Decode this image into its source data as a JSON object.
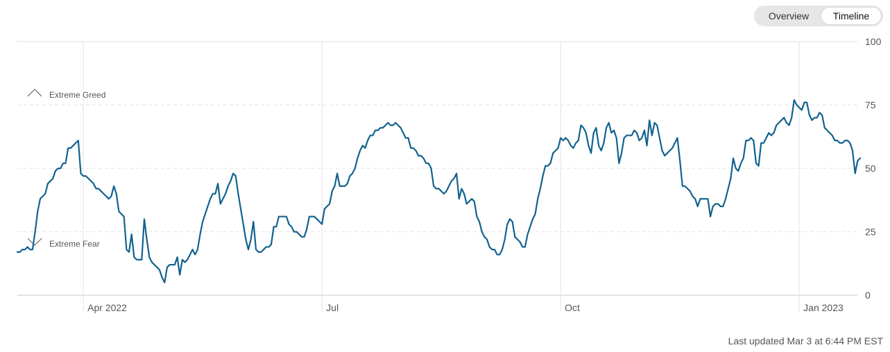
{
  "toggle": {
    "overview_label": "Overview",
    "timeline_label": "Timeline",
    "active": "Timeline"
  },
  "footer": {
    "last_updated": "Last updated Mar 3 at 6:44 PM EST"
  },
  "colors": {
    "line": "#11628f",
    "grid": "#e3e3e3",
    "axis": "#c8c8c8",
    "text": "#555555"
  },
  "chart_data": {
    "type": "line",
    "title": "",
    "xlabel": "",
    "ylabel": "",
    "ylim": [
      0,
      100
    ],
    "yticks": [
      0,
      25,
      50,
      75,
      100
    ],
    "xticks": [
      {
        "label": "Apr 2022",
        "index": 26
      },
      {
        "label": "Jul",
        "index": 120
      },
      {
        "label": "Oct",
        "index": 214
      },
      {
        "label": "Jan 2023",
        "index": 308
      }
    ],
    "annotations": [
      {
        "label": "Extreme Greed",
        "icon": "chevron-up-icon",
        "value": 75
      },
      {
        "label": "Extreme Fear",
        "icon": "chevron-down-icon",
        "value": 25
      }
    ],
    "grid": "dashed horizontal at 25/50/75, solid vertical at month ticks",
    "series": [
      {
        "values": [
          17,
          17,
          18,
          18,
          19,
          18,
          18,
          25,
          33,
          38,
          39,
          40,
          44,
          45,
          46,
          49,
          50,
          50,
          52,
          52,
          58,
          58,
          59,
          60,
          61,
          48,
          47,
          47,
          46,
          45,
          44,
          42,
          42,
          41,
          40,
          39,
          38,
          39,
          43,
          40,
          33,
          32,
          31,
          18,
          17,
          24,
          15,
          14,
          14,
          14,
          30,
          22,
          15,
          13,
          12,
          11,
          10,
          7,
          5,
          11,
          12,
          12,
          12,
          15,
          8,
          14,
          13,
          14,
          16,
          18,
          16,
          18,
          24,
          29,
          32,
          35,
          38,
          40,
          40,
          44,
          36,
          38,
          40,
          43,
          45,
          48,
          47,
          40,
          34,
          28,
          22,
          18,
          22,
          29,
          18,
          17,
          17,
          18,
          19,
          19,
          20,
          27,
          27,
          31,
          31,
          31,
          31,
          28,
          27,
          25,
          25,
          24,
          23,
          23,
          26,
          31,
          31,
          31,
          30,
          29,
          28,
          34,
          35,
          36,
          41,
          43,
          48,
          43,
          43,
          43,
          44,
          47,
          48,
          50,
          54,
          57,
          59,
          58,
          61,
          63,
          63,
          65,
          65,
          66,
          66,
          67,
          68,
          67,
          67,
          68,
          67,
          66,
          64,
          62,
          62,
          58,
          58,
          57,
          55,
          55,
          54,
          52,
          52,
          50,
          43,
          42,
          42,
          41,
          40,
          41,
          43,
          45,
          46,
          48,
          38,
          42,
          40,
          36,
          37,
          38,
          37,
          31,
          29,
          25,
          23,
          22,
          19,
          18,
          18,
          16,
          16,
          18,
          22,
          28,
          30,
          29,
          23,
          22,
          21,
          19,
          19,
          24,
          27,
          30,
          32,
          38,
          42,
          47,
          51,
          51,
          52,
          56,
          57,
          58,
          62,
          61,
          62,
          61,
          59,
          58,
          60,
          61,
          67,
          66,
          64,
          59,
          56,
          64,
          66,
          59,
          57,
          60,
          66,
          68,
          64,
          65,
          62,
          52,
          56,
          62,
          63,
          63,
          63,
          65,
          64,
          61,
          62,
          65,
          59,
          69,
          63,
          68,
          67,
          62,
          57,
          55,
          56,
          57,
          58,
          60,
          62,
          53,
          43,
          43,
          42,
          41,
          39,
          38,
          35,
          38,
          38,
          38,
          38,
          31,
          35,
          36,
          36,
          35,
          35,
          38,
          42,
          46,
          54,
          50,
          49,
          52,
          54,
          61,
          61,
          62,
          61,
          52,
          51,
          60,
          60,
          62,
          64,
          63,
          64,
          67,
          68,
          69,
          70,
          68,
          67,
          70,
          77,
          75,
          74,
          73,
          76,
          76,
          71,
          69,
          70,
          70,
          72,
          71,
          66,
          65,
          64,
          63,
          61,
          61,
          60,
          60,
          61,
          61,
          60,
          57,
          48,
          53,
          54
        ]
      }
    ]
  }
}
